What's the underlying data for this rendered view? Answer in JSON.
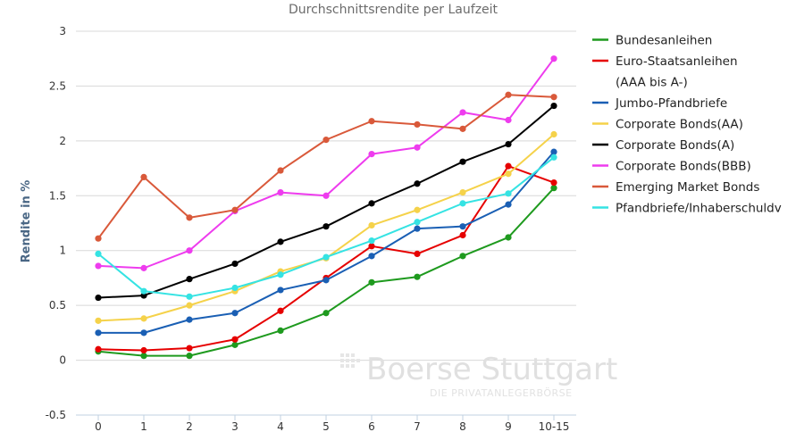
{
  "chart_data": {
    "type": "line",
    "title": "Durchschnittsrendite per Laufzeit",
    "xlabel": "",
    "ylabel": "Rendite in %",
    "categories": [
      "0",
      "1",
      "2",
      "3",
      "4",
      "5",
      "6",
      "7",
      "8",
      "9",
      "10-15"
    ],
    "ylim": [
      -0.5,
      3
    ],
    "yticks": [
      "3",
      "2.5",
      "2",
      "1.5",
      "1",
      "0.5",
      "0",
      "-0.5"
    ],
    "grid": "horizontal",
    "legend_position": "right",
    "series": [
      {
        "name": "Bundesanleihen",
        "color": "#1e9a1e",
        "values": [
          0.08,
          0.04,
          0.04,
          0.14,
          0.27,
          0.43,
          0.71,
          0.76,
          0.95,
          1.12,
          1.57
        ]
      },
      {
        "name": "Euro-Staatsanleihen",
        "name_line2": "(AAA bis A-)",
        "color": "#e60000",
        "values": [
          0.1,
          0.09,
          0.11,
          0.19,
          0.45,
          0.75,
          1.04,
          0.97,
          1.14,
          1.77,
          1.62
        ]
      },
      {
        "name": "Jumbo-Pfandbriefe",
        "color": "#1a5fb4",
        "values": [
          0.25,
          0.25,
          0.37,
          0.43,
          0.64,
          0.73,
          0.95,
          1.2,
          1.22,
          1.42,
          1.9
        ]
      },
      {
        "name": "Corporate Bonds(AA)",
        "color": "#f5d24a",
        "values": [
          0.36,
          0.38,
          0.5,
          0.63,
          0.81,
          0.93,
          1.23,
          1.37,
          1.53,
          1.7,
          2.06
        ]
      },
      {
        "name": "Corporate Bonds(A)",
        "color": "#000000",
        "values": [
          0.57,
          0.59,
          0.74,
          0.88,
          1.08,
          1.22,
          1.43,
          1.61,
          1.81,
          1.97,
          2.32
        ]
      },
      {
        "name": "Corporate Bonds(BBB)",
        "color": "#ee3cee",
        "values": [
          0.86,
          0.84,
          1.0,
          1.36,
          1.53,
          1.5,
          1.88,
          1.94,
          2.26,
          2.19,
          2.75
        ]
      },
      {
        "name": "Emerging Market Bonds",
        "color": "#d9593a",
        "values": [
          1.11,
          1.67,
          1.3,
          1.37,
          1.73,
          2.01,
          2.18,
          2.15,
          2.11,
          2.42,
          2.4
        ]
      },
      {
        "name": "Pfandbriefe/Inhaberschuldv",
        "color": "#35e3e3",
        "values": [
          0.97,
          0.63,
          0.58,
          0.66,
          0.78,
          0.94,
          1.09,
          1.26,
          1.43,
          1.52,
          1.85
        ]
      }
    ]
  },
  "watermark": {
    "brand": "Boerse Stuttgart",
    "tagline": "DIE PRIVATANLEGERBÖRSE"
  }
}
